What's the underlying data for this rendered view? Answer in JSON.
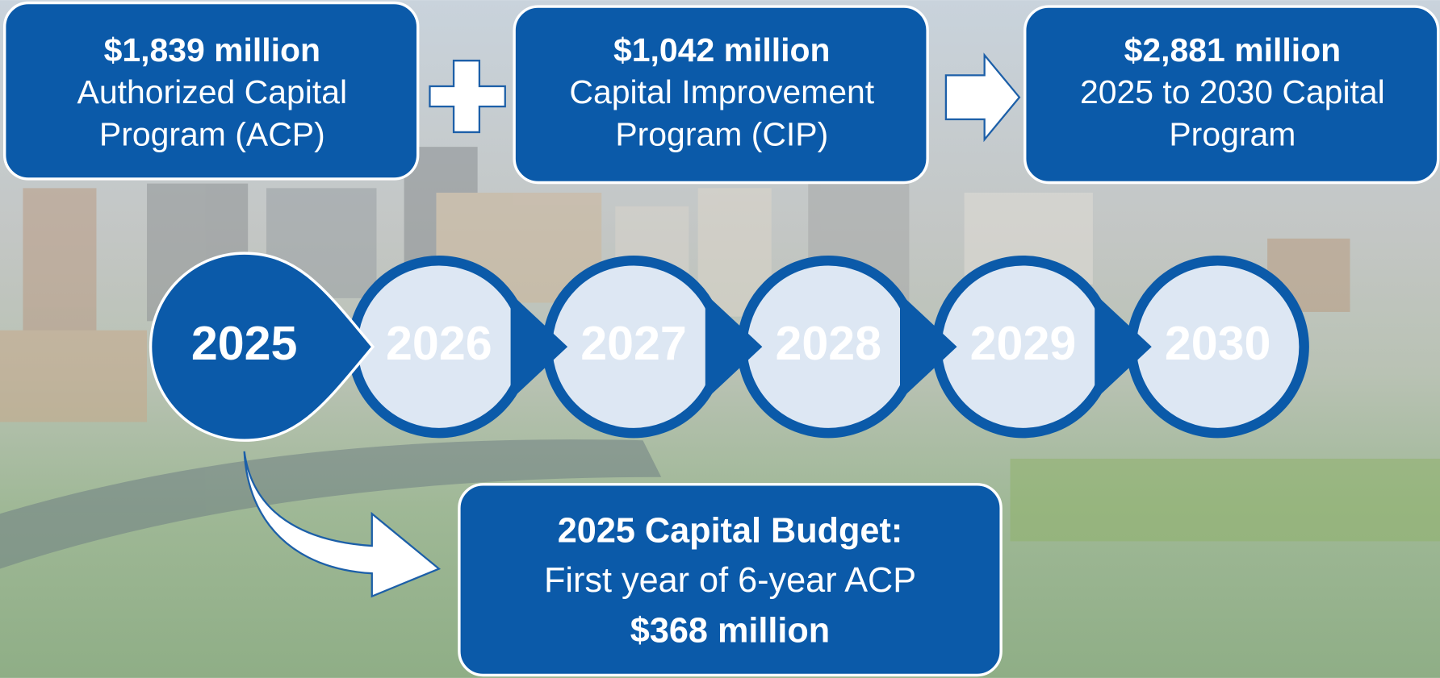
{
  "boxes": [
    {
      "amount": "$1,839 million",
      "lines": [
        "Authorized Capital",
        "Program (ACP)"
      ]
    },
    {
      "amount": "$1,042 million",
      "lines": [
        "Capital Improvement",
        "Program (CIP)"
      ]
    },
    {
      "amount": "$2,881 million",
      "lines": [
        "2025 to 2030 Capital",
        "Program"
      ]
    }
  ],
  "years": [
    "2025",
    "2026",
    "2027",
    "2028",
    "2029",
    "2030"
  ],
  "budget": {
    "title": "2025 Capital Budget:",
    "subtitle": "First year of 6-year ACP",
    "amount": "$368 million"
  }
}
